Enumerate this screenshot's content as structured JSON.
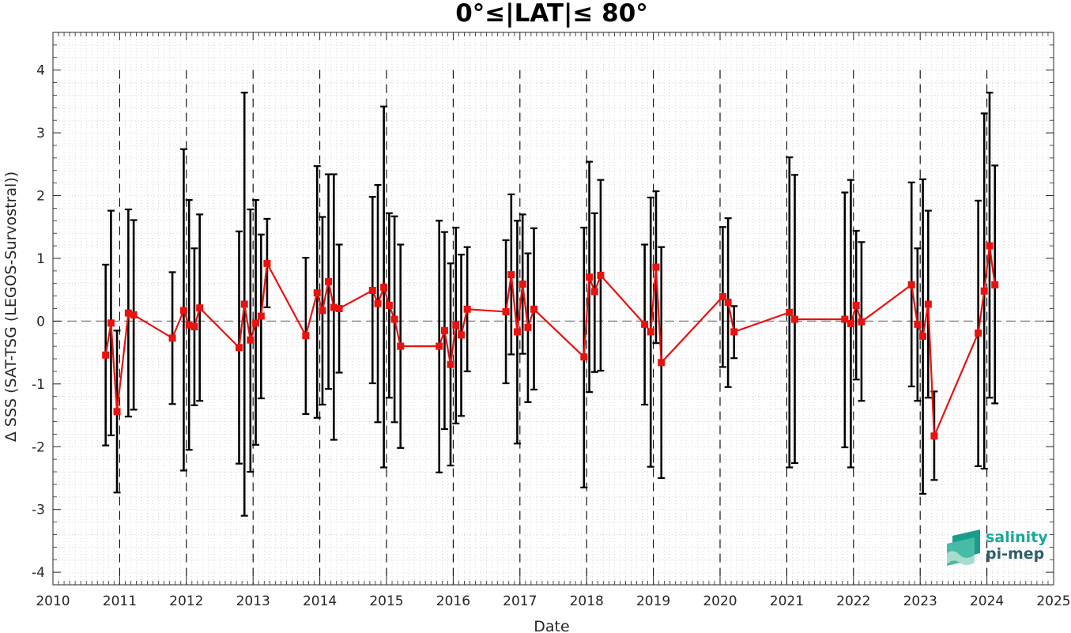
{
  "chart_data": {
    "type": "line",
    "title": "0°≤|LAT|≤ 80°",
    "xlabel": "Date",
    "ylabel": "Δ SSS (SAT-TSG (LEGOS-Survostral))",
    "xlim": [
      2010,
      2025
    ],
    "ylim": [
      -4.2,
      4.6
    ],
    "x_ticks": [
      "2010",
      "2011",
      "2012",
      "2013",
      "2014",
      "2015",
      "2016",
      "2017",
      "2018",
      "2019",
      "2020",
      "2021",
      "2022",
      "2023",
      "2024",
      "2025"
    ],
    "y_ticks": [
      "4",
      "3",
      "2",
      "1",
      "0",
      "-1",
      "-2",
      "-3",
      "-4"
    ],
    "year_markers": [
      2011,
      2012,
      2013,
      2014,
      2015,
      2016,
      2017,
      2018,
      2019,
      2020,
      2021,
      2022,
      2023,
      2024
    ],
    "zero_line": 0,
    "grid": "minor dotted",
    "series": [
      {
        "color": "#e8120f",
        "marker": "square",
        "points": [
          {
            "x": 2010.79,
            "y": -0.54,
            "lo": -1.98,
            "hi": 0.9
          },
          {
            "x": 2010.87,
            "y": -0.03,
            "lo": -1.82,
            "hi": 1.76
          },
          {
            "x": 2010.96,
            "y": -1.44,
            "lo": -2.73,
            "hi": -0.15
          },
          {
            "x": 2011.13,
            "y": 0.13,
            "lo": -1.52,
            "hi": 1.78
          },
          {
            "x": 2011.21,
            "y": 0.1,
            "lo": -1.41,
            "hi": 1.61
          },
          {
            "x": 2011.79,
            "y": -0.27,
            "lo": -1.32,
            "hi": 0.78
          },
          {
            "x": 2011.96,
            "y": 0.17,
            "lo": -2.38,
            "hi": 2.74
          },
          {
            "x": 2012.04,
            "y": -0.06,
            "lo": -2.05,
            "hi": 1.93
          },
          {
            "x": 2012.12,
            "y": -0.09,
            "lo": -1.34,
            "hi": 1.16
          },
          {
            "x": 2012.2,
            "y": 0.21,
            "lo": -1.27,
            "hi": 1.7
          },
          {
            "x": 2012.79,
            "y": -0.42,
            "lo": -2.27,
            "hi": 1.43
          },
          {
            "x": 2012.87,
            "y": 0.27,
            "lo": -3.1,
            "hi": 3.64
          },
          {
            "x": 2012.96,
            "y": -0.3,
            "lo": -2.4,
            "hi": 1.78
          },
          {
            "x": 2013.04,
            "y": -0.03,
            "lo": -1.97,
            "hi": 1.93
          },
          {
            "x": 2013.12,
            "y": 0.08,
            "lo": -1.23,
            "hi": 1.38
          },
          {
            "x": 2013.21,
            "y": 0.92,
            "lo": 0.22,
            "hi": 1.63
          },
          {
            "x": 2013.79,
            "y": -0.23,
            "lo": -1.48,
            "hi": 1.01
          },
          {
            "x": 2013.96,
            "y": 0.45,
            "lo": -1.54,
            "hi": 2.47
          },
          {
            "x": 2014.04,
            "y": 0.17,
            "lo": -1.33,
            "hi": 1.66
          },
          {
            "x": 2014.13,
            "y": 0.63,
            "lo": -1.08,
            "hi": 2.34
          },
          {
            "x": 2014.21,
            "y": 0.22,
            "lo": -1.89,
            "hi": 2.34
          },
          {
            "x": 2014.29,
            "y": 0.2,
            "lo": -0.82,
            "hi": 1.22
          },
          {
            "x": 2014.79,
            "y": 0.49,
            "lo": -0.99,
            "hi": 1.98
          },
          {
            "x": 2014.87,
            "y": 0.28,
            "lo": -1.61,
            "hi": 2.17
          },
          {
            "x": 2014.96,
            "y": 0.54,
            "lo": -2.33,
            "hi": 3.42
          },
          {
            "x": 2015.04,
            "y": 0.25,
            "lo": -1.22,
            "hi": 1.72
          },
          {
            "x": 2015.12,
            "y": 0.03,
            "lo": -1.61,
            "hi": 1.67
          },
          {
            "x": 2015.21,
            "y": -0.4,
            "lo": -2.02,
            "hi": 1.22
          },
          {
            "x": 2015.79,
            "y": -0.4,
            "lo": -2.41,
            "hi": 1.6
          },
          {
            "x": 2015.87,
            "y": -0.15,
            "lo": -1.72,
            "hi": 1.42
          },
          {
            "x": 2015.96,
            "y": -0.69,
            "lo": -2.3,
            "hi": 0.92
          },
          {
            "x": 2016.04,
            "y": -0.06,
            "lo": -1.63,
            "hi": 1.49
          },
          {
            "x": 2016.12,
            "y": -0.22,
            "lo": -1.51,
            "hi": 1.06
          },
          {
            "x": 2016.21,
            "y": 0.19,
            "lo": -0.8,
            "hi": 1.18
          },
          {
            "x": 2016.79,
            "y": 0.15,
            "lo": -0.99,
            "hi": 1.29
          },
          {
            "x": 2016.87,
            "y": 0.74,
            "lo": -0.53,
            "hi": 2.02
          },
          {
            "x": 2016.96,
            "y": -0.17,
            "lo": -1.95,
            "hi": 1.6
          },
          {
            "x": 2017.04,
            "y": 0.59,
            "lo": -0.52,
            "hi": 1.7
          },
          {
            "x": 2017.12,
            "y": -0.1,
            "lo": -1.29,
            "hi": 1.08
          },
          {
            "x": 2017.21,
            "y": 0.19,
            "lo": -1.09,
            "hi": 1.48
          },
          {
            "x": 2017.96,
            "y": -0.57,
            "lo": -2.65,
            "hi": 1.49
          },
          {
            "x": 2018.04,
            "y": 0.7,
            "lo": -1.13,
            "hi": 2.54
          },
          {
            "x": 2018.12,
            "y": 0.47,
            "lo": -0.81,
            "hi": 1.72
          },
          {
            "x": 2018.21,
            "y": 0.73,
            "lo": -0.79,
            "hi": 2.25
          },
          {
            "x": 2018.87,
            "y": -0.05,
            "lo": -1.33,
            "hi": 1.22
          },
          {
            "x": 2018.96,
            "y": -0.17,
            "lo": -2.32,
            "hi": 1.97
          },
          {
            "x": 2019.04,
            "y": 0.86,
            "lo": -0.35,
            "hi": 2.07
          },
          {
            "x": 2019.12,
            "y": -0.66,
            "lo": -2.5,
            "hi": 1.18
          },
          {
            "x": 2020.04,
            "y": 0.39,
            "lo": -0.73,
            "hi": 1.5
          },
          {
            "x": 2020.12,
            "y": 0.3,
            "lo": -1.05,
            "hi": 1.64
          },
          {
            "x": 2020.21,
            "y": -0.17,
            "lo": -0.59,
            "hi": 0.24
          },
          {
            "x": 2021.04,
            "y": 0.14,
            "lo": -2.33,
            "hi": 2.61
          },
          {
            "x": 2021.12,
            "y": 0.03,
            "lo": -2.26,
            "hi": 2.33
          },
          {
            "x": 2021.87,
            "y": 0.03,
            "lo": -2.01,
            "hi": 2.05
          },
          {
            "x": 2021.96,
            "y": -0.04,
            "lo": -2.33,
            "hi": 2.25
          },
          {
            "x": 2022.04,
            "y": 0.25,
            "lo": -0.93,
            "hi": 1.44
          },
          {
            "x": 2022.12,
            "y": -0.01,
            "lo": -1.27,
            "hi": 1.26
          },
          {
            "x": 2022.87,
            "y": 0.58,
            "lo": -1.04,
            "hi": 2.21
          },
          {
            "x": 2022.96,
            "y": -0.05,
            "lo": -1.27,
            "hi": 1.16
          },
          {
            "x": 2023.04,
            "y": -0.24,
            "lo": -2.75,
            "hi": 2.26
          },
          {
            "x": 2023.12,
            "y": 0.27,
            "lo": -1.22,
            "hi": 1.76
          },
          {
            "x": 2023.21,
            "y": -1.83,
            "lo": -2.53,
            "hi": -1.12
          },
          {
            "x": 2023.87,
            "y": -0.19,
            "lo": -2.31,
            "hi": 1.92
          },
          {
            "x": 2023.96,
            "y": 0.48,
            "lo": -2.35,
            "hi": 3.31
          },
          {
            "x": 2024.04,
            "y": 1.2,
            "lo": -1.22,
            "hi": 3.64
          },
          {
            "x": 2024.12,
            "y": 0.58,
            "lo": -1.31,
            "hi": 2.48
          }
        ]
      }
    ]
  },
  "logo": {
    "line1": "salinity",
    "line2": "pi-mep",
    "color1": "#1aa89a",
    "color2": "#2f5f6b"
  },
  "colors": {
    "series": "#e8120f",
    "errorbar": "#000000",
    "zero_line": "#808080",
    "axis": "#262626"
  }
}
